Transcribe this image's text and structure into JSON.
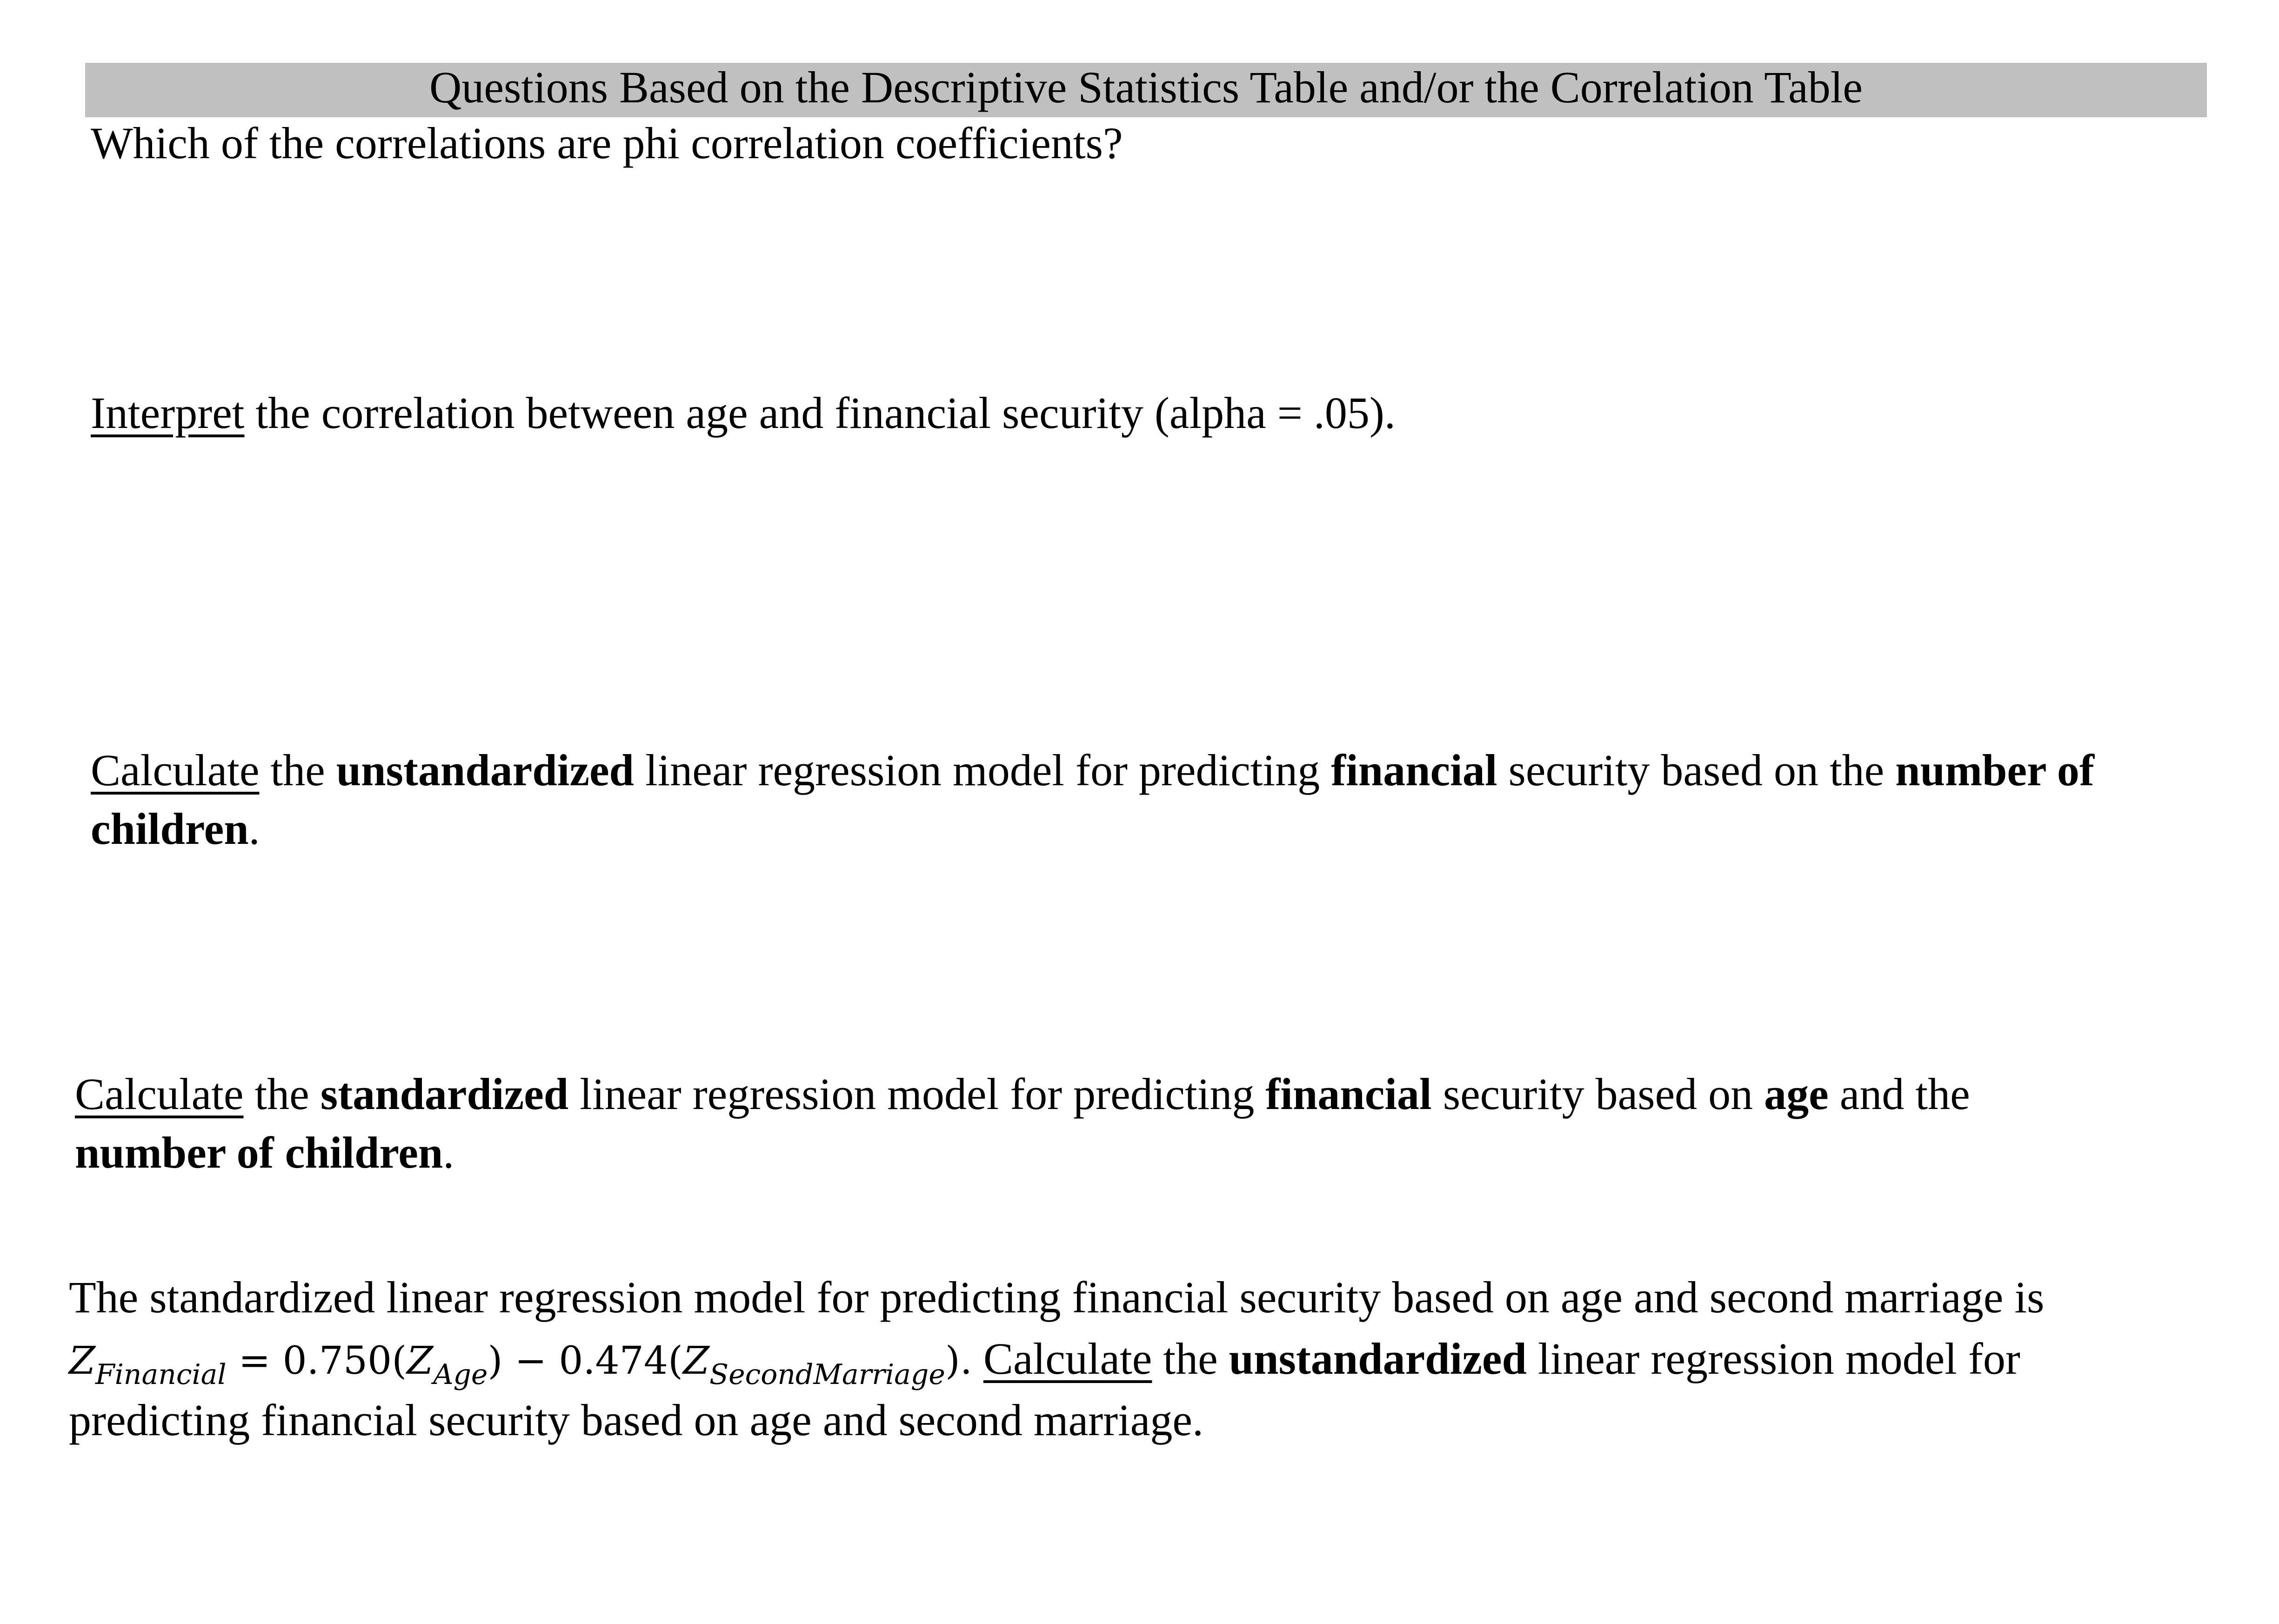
{
  "header": {
    "title": "Questions Based on the Descriptive Statistics Table and/or the Correlation Table"
  },
  "questions": [
    {
      "lines": [
        [
          {
            "t": "Which of the correlations are phi correlation coefficients?",
            "s": "n"
          }
        ]
      ]
    },
    {
      "lines": [
        [
          {
            "t": "Interpret",
            "s": "u"
          },
          {
            "t": " the correlation between age and financial security (alpha = .05).",
            "s": "n"
          }
        ]
      ]
    },
    {
      "lines": [
        [
          {
            "t": "Calculate",
            "s": "u"
          },
          {
            "t": " the ",
            "s": "n"
          },
          {
            "t": "unstandardized",
            "s": "b"
          },
          {
            "t": " linear regression model for predicting ",
            "s": "n"
          },
          {
            "t": "financial",
            "s": "b"
          },
          {
            "t": " security based on the ",
            "s": "n"
          },
          {
            "t": "number of",
            "s": "b"
          }
        ],
        [
          {
            "t": "children",
            "s": "b"
          },
          {
            "t": ".",
            "s": "n"
          }
        ]
      ]
    },
    {
      "lines": [
        [
          {
            "t": "Calculate",
            "s": "u"
          },
          {
            "t": " the ",
            "s": "n"
          },
          {
            "t": "standardized",
            "s": "b"
          },
          {
            "t": " linear regression model for predicting ",
            "s": "n"
          },
          {
            "t": "financial",
            "s": "b"
          },
          {
            "t": " security based on ",
            "s": "n"
          },
          {
            "t": "age",
            "s": "b"
          },
          {
            "t": " and the",
            "s": "n"
          }
        ],
        [
          {
            "t": "number of children",
            "s": "b"
          },
          {
            "t": ".",
            "s": "n"
          }
        ]
      ]
    },
    {
      "lines": [
        [
          {
            "t": "The standardized linear regression model for predicting financial security based on age and second marriage is",
            "s": "n"
          }
        ],
        [
          {
            "t": "Z",
            "s": "mi"
          },
          {
            "t": "Financial",
            "s": "sub"
          },
          {
            "t": " = 0.750(",
            "s": "mn"
          },
          {
            "t": "Z",
            "s": "mi"
          },
          {
            "t": "Age",
            "s": "sub"
          },
          {
            "t": ") − 0.474(",
            "s": "mn"
          },
          {
            "t": "Z",
            "s": "mi"
          },
          {
            "t": "SecondMarriage",
            "s": "sub"
          },
          {
            "t": ").",
            "s": "mn"
          },
          {
            "t": " ",
            "s": "n"
          },
          {
            "t": "Calculate",
            "s": "u"
          },
          {
            "t": " the ",
            "s": "n"
          },
          {
            "t": "unstandardized",
            "s": "b"
          },
          {
            "t": " linear regression model for",
            "s": "n"
          }
        ],
        [
          {
            "t": "predicting financial security based on age and second marriage.",
            "s": "n"
          }
        ]
      ]
    }
  ]
}
